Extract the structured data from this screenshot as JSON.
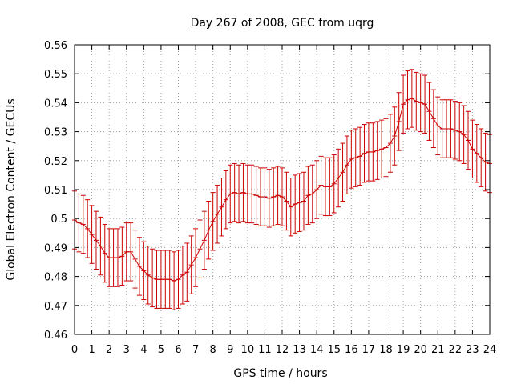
{
  "chart_data": {
    "type": "line",
    "title": "Day 267 of 2008, GEC from uqrg",
    "xlabel": "GPS time / hours",
    "ylabel": "Global Electron Content / GECUs",
    "xlim": [
      0,
      24
    ],
    "ylim": [
      0.46,
      0.56
    ],
    "grid": true,
    "line_color": "#cc0000",
    "x_ticks": [
      0,
      1,
      2,
      3,
      4,
      5,
      6,
      7,
      8,
      9,
      10,
      11,
      12,
      13,
      14,
      15,
      16,
      17,
      18,
      19,
      20,
      21,
      22,
      23,
      24
    ],
    "x_tick_labels": [
      "0",
      "1",
      "2",
      "3",
      "4",
      "5",
      "6",
      "7",
      "8",
      "9",
      "10",
      "11",
      "12",
      "13",
      "14",
      "15",
      "16",
      "17",
      "18",
      "19",
      "20",
      "21",
      "22",
      "23",
      "24"
    ],
    "y_ticks": [
      0.46,
      0.47,
      0.48,
      0.49,
      0.5,
      0.51,
      0.52,
      0.53,
      0.54,
      0.55,
      0.56
    ],
    "y_tick_labels": [
      "0.46",
      "0.47",
      "0.48",
      "0.49",
      "0.5",
      "0.51",
      "0.52",
      "0.53",
      "0.54",
      "0.55",
      "0.56"
    ],
    "series": [
      {
        "error": 0.01,
        "x": [
          0,
          0.25,
          0.5,
          0.75,
          1,
          1.25,
          1.5,
          1.75,
          2,
          2.25,
          2.5,
          2.75,
          3,
          3.25,
          3.5,
          3.75,
          4,
          4.25,
          4.5,
          4.75,
          5,
          5.25,
          5.5,
          5.75,
          6,
          6.25,
          6.5,
          6.75,
          7,
          7.25,
          7.5,
          7.75,
          8,
          8.25,
          8.5,
          8.75,
          9,
          9.25,
          9.5,
          9.75,
          10,
          10.25,
          10.5,
          10.75,
          11,
          11.25,
          11.5,
          11.75,
          12,
          12.25,
          12.5,
          12.75,
          13,
          13.25,
          13.5,
          13.75,
          14,
          14.25,
          14.5,
          14.75,
          15,
          15.25,
          15.5,
          15.75,
          16,
          16.25,
          16.5,
          16.75,
          17,
          17.25,
          17.5,
          17.75,
          18,
          18.25,
          18.5,
          18.75,
          19,
          19.25,
          19.5,
          19.75,
          20,
          20.25,
          20.5,
          20.75,
          21,
          21.25,
          21.5,
          21.75,
          22,
          22.25,
          22.5,
          22.75,
          23,
          23.25,
          23.5,
          23.75,
          24
        ],
        "y": [
          0.4995,
          0.4985,
          0.498,
          0.4965,
          0.4945,
          0.4925,
          0.4905,
          0.488,
          0.4865,
          0.4865,
          0.4865,
          0.487,
          0.4885,
          0.4885,
          0.486,
          0.4835,
          0.482,
          0.4805,
          0.4795,
          0.479,
          0.479,
          0.479,
          0.479,
          0.4785,
          0.479,
          0.4805,
          0.4815,
          0.484,
          0.4865,
          0.4895,
          0.4925,
          0.496,
          0.499,
          0.5015,
          0.504,
          0.5065,
          0.5085,
          0.509,
          0.5085,
          0.509,
          0.5085,
          0.5085,
          0.508,
          0.5075,
          0.5075,
          0.507,
          0.5075,
          0.508,
          0.5075,
          0.506,
          0.504,
          0.505,
          0.5055,
          0.506,
          0.508,
          0.5085,
          0.51,
          0.5115,
          0.511,
          0.511,
          0.512,
          0.514,
          0.516,
          0.5185,
          0.5205,
          0.521,
          0.5215,
          0.5225,
          0.523,
          0.523,
          0.5235,
          0.524,
          0.5245,
          0.526,
          0.5285,
          0.5335,
          0.5395,
          0.541,
          0.5415,
          0.5405,
          0.54,
          0.5395,
          0.537,
          0.5345,
          0.532,
          0.531,
          0.531,
          0.531,
          0.5305,
          0.53,
          0.529,
          0.527,
          0.524,
          0.5225,
          0.521,
          0.5195,
          0.519
        ]
      }
    ]
  }
}
